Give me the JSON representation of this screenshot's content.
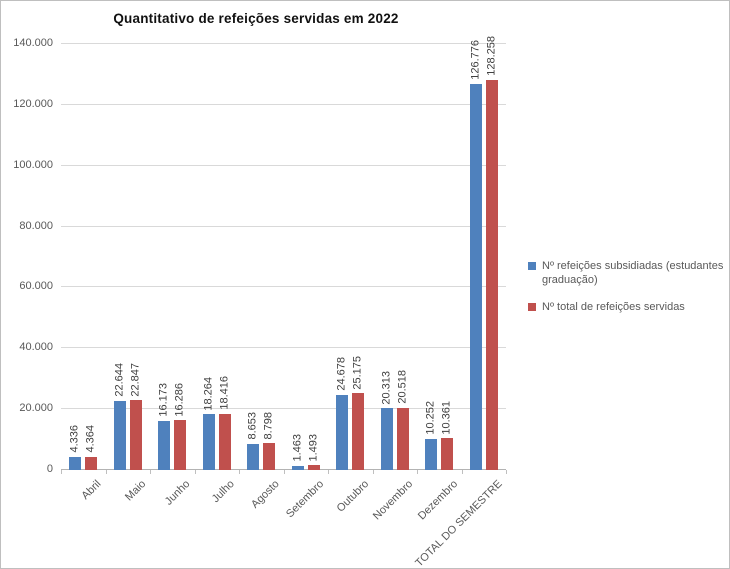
{
  "chart_data": {
    "type": "bar",
    "title": "Quantitativo de refeições servidas em 2022",
    "categories": [
      "Abril",
      "Maio",
      "Junho",
      "Julho",
      "Agosto",
      "Setembro",
      "Outubro",
      "Novembro",
      "Dezembro",
      "TOTAL DO SEMESTRE"
    ],
    "series": [
      {
        "name": "Nº refeições subsidiadas (estudantes graduação)",
        "color": "#4F81BD",
        "values": [
          4336,
          22644,
          16173,
          18264,
          8653,
          1463,
          24678,
          20313,
          10252,
          126776
        ],
        "labels": [
          "4.336",
          "22.644",
          "16.173",
          "18.264",
          "8.653",
          "1.463",
          "24.678",
          "20.313",
          "10.252",
          "126.776"
        ]
      },
      {
        "name": "Nº total de refeições servidas",
        "color": "#C0504D",
        "values": [
          4364,
          22847,
          16286,
          18416,
          8798,
          1493,
          25175,
          20518,
          10361,
          128258
        ],
        "labels": [
          "4.364",
          "22.847",
          "16.286",
          "18.416",
          "8.798",
          "1.493",
          "25.175",
          "20.518",
          "10.361",
          "128.258"
        ]
      }
    ],
    "ylim": [
      0,
      140000
    ],
    "ytick_step": 20000,
    "ytick_labels": [
      "0",
      "20.000",
      "40.000",
      "60.000",
      "80.000",
      "100.000",
      "120.000",
      "140.000"
    ],
    "grid": true,
    "legend_position": "right",
    "colors": {
      "gridline": "#d9d9d9",
      "axis_line": "#b3b3b3",
      "axis_text": "#595959",
      "value_label_text": "#404040",
      "title_text": "#111111"
    }
  }
}
